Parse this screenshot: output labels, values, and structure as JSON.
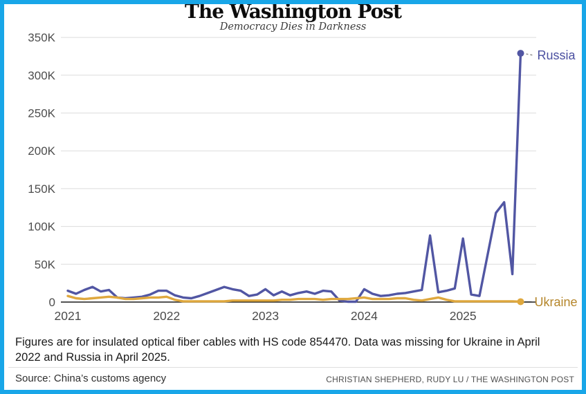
{
  "theme": {
    "frame_color": "#18a6e8",
    "grid_color": "#dcdcdc",
    "axis_color": "#1a1a1a",
    "tick_text_color": "#4d4d4d"
  },
  "masthead": {
    "title": "The Washington Post",
    "tagline": "Democracy Dies in Darkness"
  },
  "chart_data": {
    "type": "line",
    "title": "",
    "xlabel": "",
    "ylabel": "",
    "x_start_month": "2021-01",
    "x_end_month": "2025-08",
    "x_interval": "monthly",
    "x_ticks": [
      "2021",
      "2022",
      "2023",
      "2024",
      "2025"
    ],
    "y_ticks": [
      "0",
      "50K",
      "100K",
      "150K",
      "200K",
      "250K",
      "300K",
      "350K"
    ],
    "y_tick_step": 50000,
    "ylim": [
      0,
      350000
    ],
    "grid": true,
    "legend_position": "end-of-line-labels",
    "series": [
      {
        "name": "Russia",
        "color": "#5156a3",
        "label_color": "#4a4fa0",
        "values": [
          15000,
          11000,
          16000,
          20000,
          14000,
          16000,
          6000,
          5000,
          6000,
          7000,
          10000,
          15000,
          15000,
          9000,
          6000,
          5000,
          8000,
          12000,
          16000,
          20000,
          17000,
          15000,
          8000,
          10000,
          17000,
          9000,
          14000,
          9000,
          12000,
          14000,
          11000,
          15000,
          14000,
          2000,
          500,
          500,
          17000,
          11000,
          8000,
          9000,
          11000,
          12000,
          14000,
          16000,
          88000,
          13000,
          15000,
          18000,
          84000,
          10000,
          8000,
          null,
          118000,
          132000,
          37000,
          329000
        ]
      },
      {
        "name": "Ukraine",
        "color": "#dfa83e",
        "label_color": "#b5862b",
        "values": [
          8000,
          5000,
          4000,
          5000,
          6000,
          7000,
          6000,
          4000,
          4000,
          5000,
          6000,
          6000,
          7000,
          3000,
          1000,
          null,
          1000,
          1000,
          1000,
          1000,
          2000,
          2000,
          2000,
          2000,
          2000,
          2000,
          3000,
          3000,
          4000,
          4000,
          4000,
          3000,
          4000,
          4000,
          4000,
          5000,
          6000,
          4000,
          4000,
          4000,
          5000,
          5000,
          3000,
          2000,
          4000,
          6000,
          3000,
          1000,
          1000,
          1000,
          1000,
          1000,
          1000,
          1000,
          1000,
          500
        ]
      }
    ],
    "missing_data": [
      "Ukraine 2022-04",
      "Russia 2025-04"
    ]
  },
  "caption": {
    "text": "Figures are for insulated optical fiber cables with HS code 854470. Data was missing for Ukraine in April 2022 and Russia in April 2025."
  },
  "footer": {
    "source": "Source: China’s customs agency",
    "credit": "CHRISTIAN SHEPHERD, RUDY LU / THE WASHINGTON POST"
  }
}
